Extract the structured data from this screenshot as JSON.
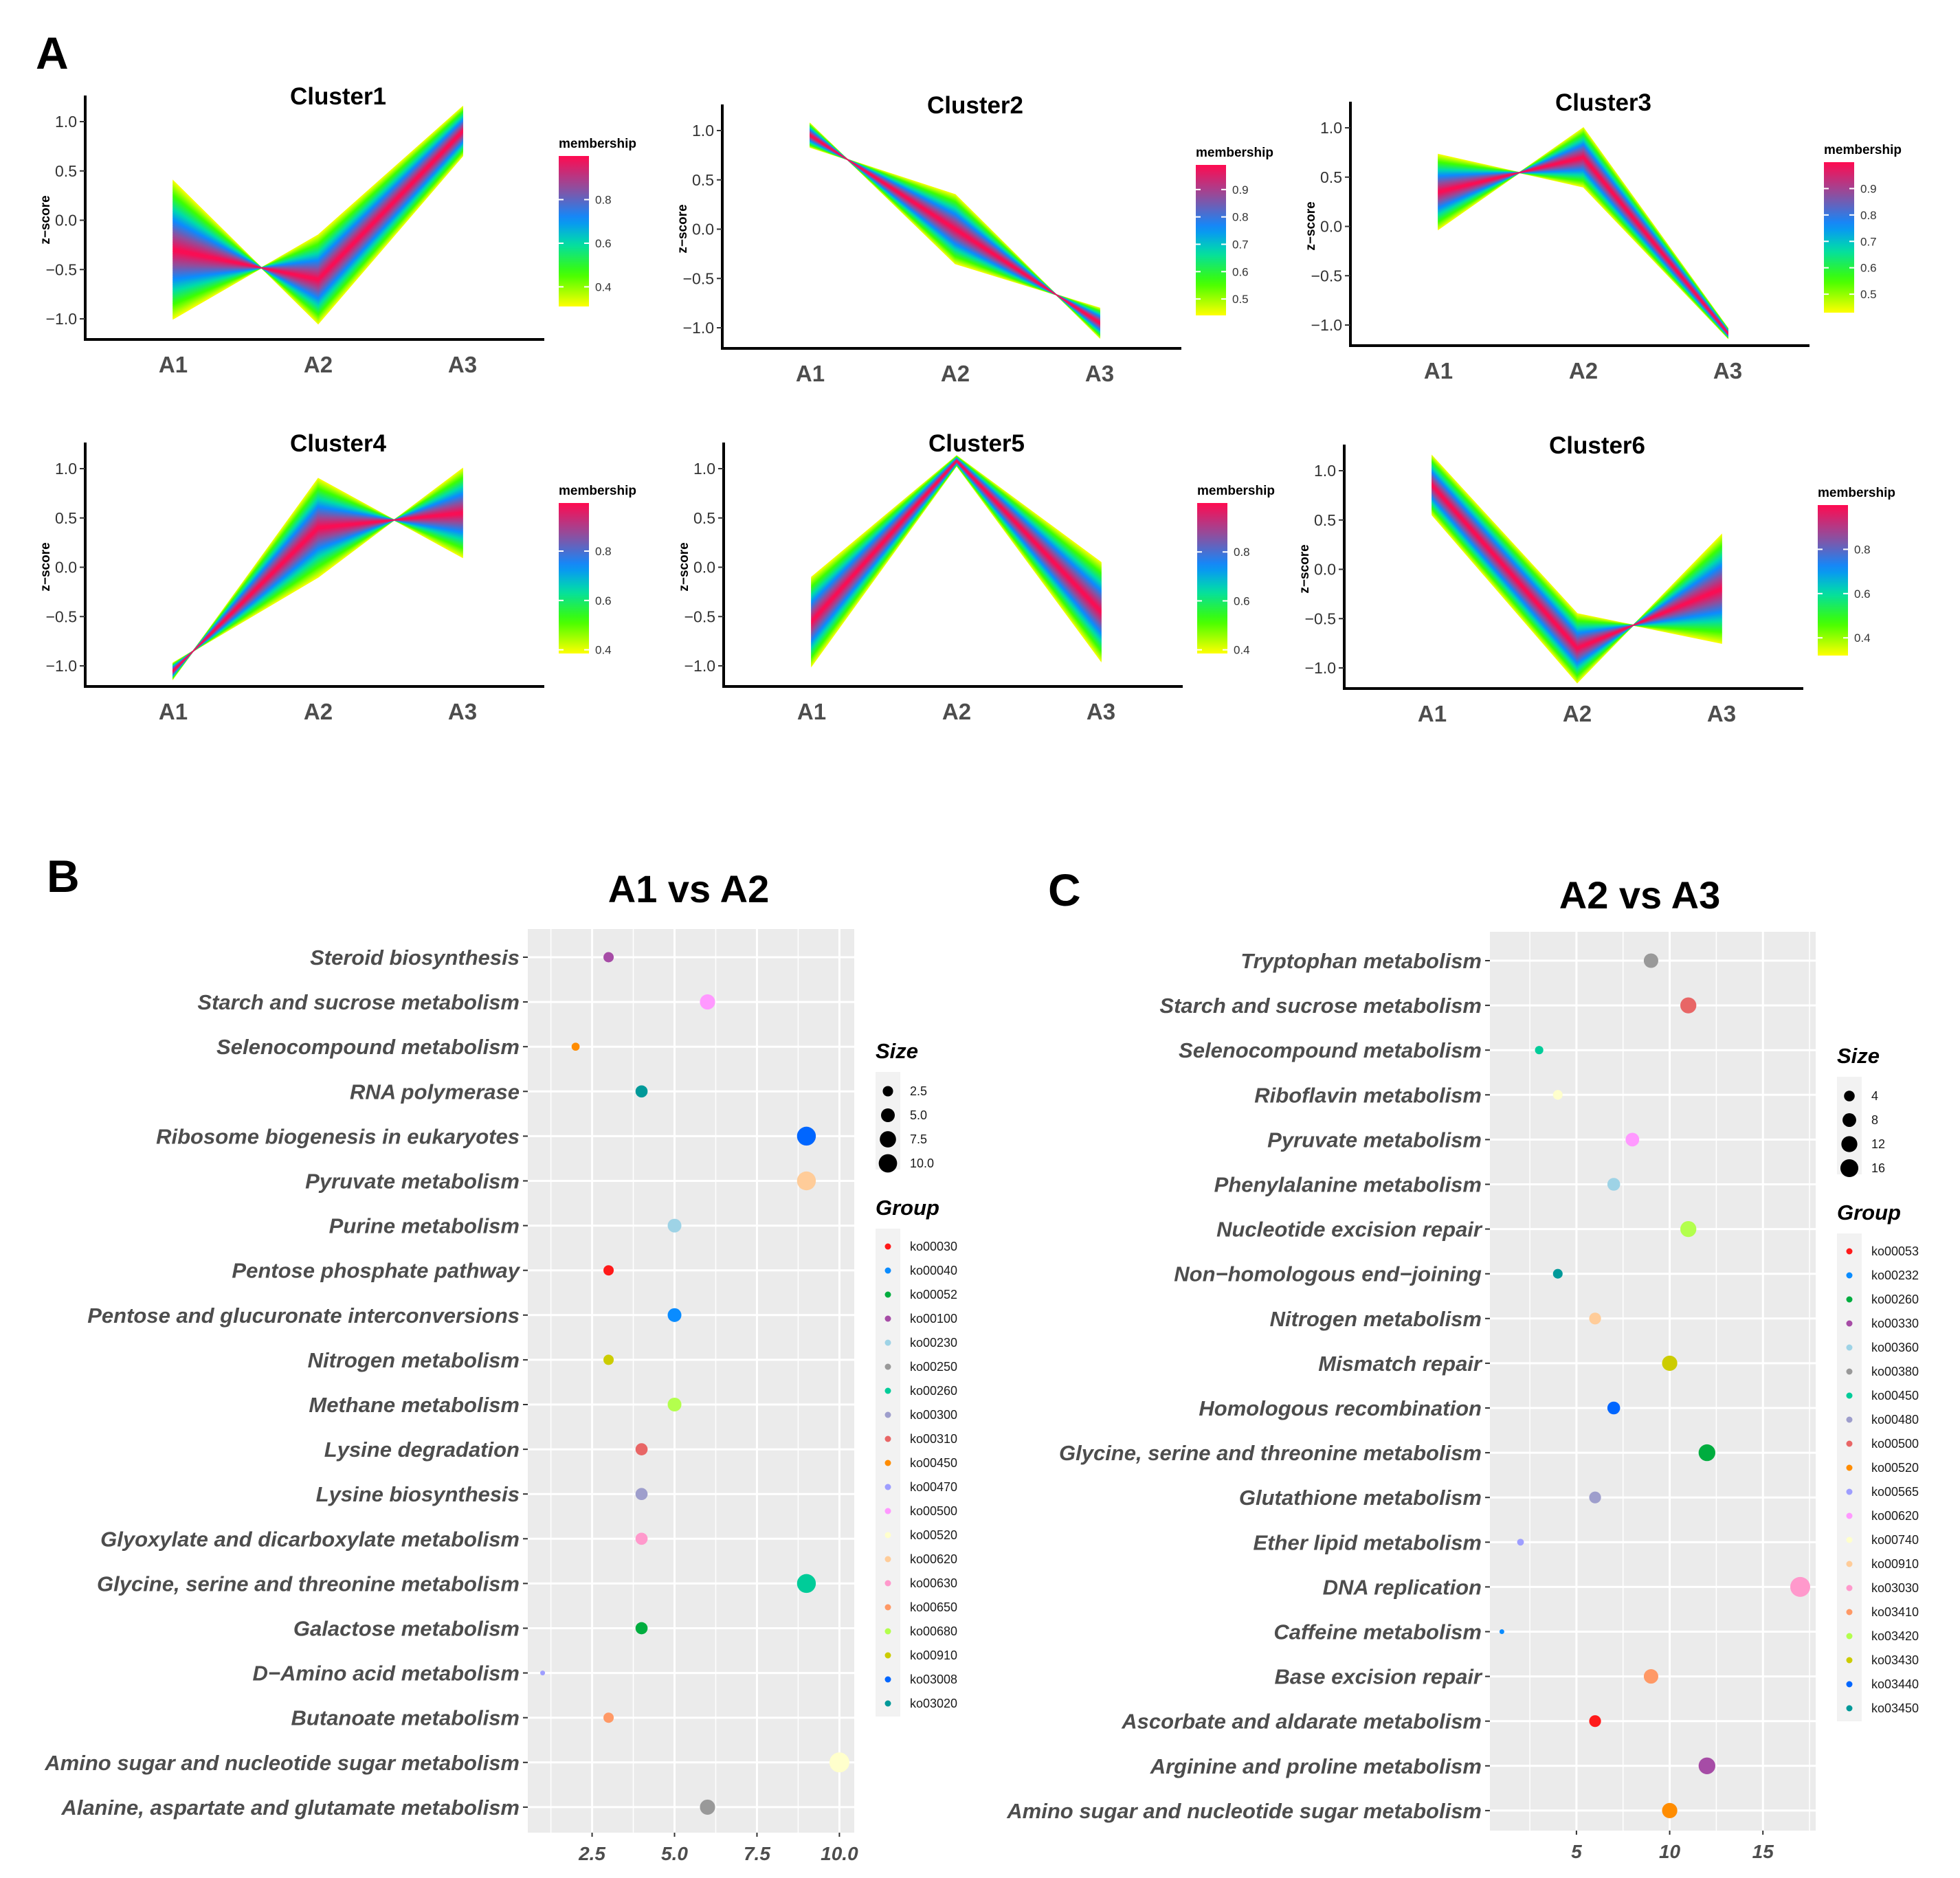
{
  "panel_labels": {
    "a": "A",
    "b": "B",
    "c": "C"
  },
  "chart_data": [
    {
      "type": "line",
      "title": "Cluster1",
      "ylabel": "z−score",
      "categories": [
        "A1",
        "A2",
        "A3"
      ],
      "yticks": [
        {
          "v": 1.0,
          "label": "1.0"
        },
        {
          "v": 0.5,
          "label": "0.5"
        },
        {
          "v": 0.0,
          "label": "0.0"
        },
        {
          "v": -0.5,
          "label": "−0.5"
        },
        {
          "v": -1.0,
          "label": "−1.0"
        }
      ],
      "legend_title": "membership",
      "legend_ticks": [
        0.4,
        0.6,
        0.8
      ],
      "membership_range": [
        0.31,
        1.0
      ],
      "core_profile": [
        -0.3,
        -0.6,
        0.9
      ],
      "spread": [
        0.7,
        -0.45,
        -0.25
      ]
    },
    {
      "type": "line",
      "title": "Cluster2",
      "ylabel": "z−score",
      "categories": [
        "A1",
        "A2",
        "A3"
      ],
      "yticks": [
        {
          "v": 1.0,
          "label": "1.0"
        },
        {
          "v": 0.5,
          "label": "0.5"
        },
        {
          "v": 0.0,
          "label": "0.0"
        },
        {
          "v": -0.5,
          "label": "−0.5"
        },
        {
          "v": -1.0,
          "label": "−1.0"
        }
      ],
      "legend_title": "membership",
      "legend_ticks": [
        0.5,
        0.6,
        0.7,
        0.8,
        0.9
      ],
      "membership_range": [
        0.44,
        0.99
      ],
      "core_profile": [
        0.95,
        0.0,
        -0.95
      ],
      "spread": [
        -0.12,
        0.35,
        -0.15
      ]
    },
    {
      "type": "line",
      "title": "Cluster3",
      "ylabel": "z−score",
      "categories": [
        "A1",
        "A2",
        "A3"
      ],
      "yticks": [
        {
          "v": 1.0,
          "label": "1.0"
        },
        {
          "v": 0.5,
          "label": "0.5"
        },
        {
          "v": 0.0,
          "label": "0.0"
        },
        {
          "v": -0.5,
          "label": "−0.5"
        },
        {
          "v": -1.0,
          "label": "−1.0"
        }
      ],
      "legend_title": "membership",
      "legend_ticks": [
        0.5,
        0.6,
        0.7,
        0.8,
        0.9
      ],
      "membership_range": [
        0.43,
        1.0
      ],
      "core_profile": [
        0.35,
        0.7,
        -1.08
      ],
      "spread": [
        -0.38,
        0.3,
        0.05
      ]
    },
    {
      "type": "line",
      "title": "Cluster4",
      "ylabel": "z−score",
      "categories": [
        "A1",
        "A2",
        "A3"
      ],
      "yticks": [
        {
          "v": 1.0,
          "label": "1.0"
        },
        {
          "v": 0.5,
          "label": "0.5"
        },
        {
          "v": 0.0,
          "label": "0.0"
        },
        {
          "v": -0.5,
          "label": "−0.5"
        },
        {
          "v": -1.0,
          "label": "−1.0"
        }
      ],
      "legend_title": "membership",
      "legend_ticks": [
        0.4,
        0.6,
        0.8
      ],
      "membership_range": [
        0.385,
        0.995
      ],
      "core_profile": [
        -1.05,
        0.4,
        0.55
      ],
      "spread": [
        0.08,
        -0.5,
        0.45
      ]
    },
    {
      "type": "line",
      "title": "Cluster5",
      "ylabel": "z−score",
      "categories": [
        "A1",
        "A2",
        "A3"
      ],
      "yticks": [
        {
          "v": 1.0,
          "label": "1.0"
        },
        {
          "v": 0.5,
          "label": "0.5"
        },
        {
          "v": 0.0,
          "label": "0.0"
        },
        {
          "v": -0.5,
          "label": "−0.5"
        },
        {
          "v": -1.0,
          "label": "−1.0"
        }
      ],
      "legend_title": "membership",
      "legend_ticks": [
        0.4,
        0.6,
        0.8
      ],
      "membership_range": [
        0.385,
        1.0
      ],
      "core_profile": [
        -0.55,
        1.08,
        -0.45
      ],
      "spread": [
        0.45,
        0.05,
        0.5
      ]
    },
    {
      "type": "line",
      "title": "Cluster6",
      "ylabel": "z−score",
      "categories": [
        "A1",
        "A2",
        "A3"
      ],
      "yticks": [
        {
          "v": 1.0,
          "label": "1.0"
        },
        {
          "v": 0.5,
          "label": "0.5"
        },
        {
          "v": 0.0,
          "label": "0.0"
        },
        {
          "v": -0.5,
          "label": "−0.5"
        },
        {
          "v": -1.0,
          "label": "−1.0"
        }
      ],
      "legend_title": "membership",
      "legend_ticks": [
        0.4,
        0.6,
        0.8
      ],
      "membership_range": [
        0.32,
        1.0
      ],
      "core_profile": [
        0.85,
        -0.8,
        -0.2
      ],
      "spread": [
        -0.3,
        -0.35,
        0.55
      ]
    },
    {
      "type": "scatter",
      "title": "A1 vs A2",
      "xlim": [
        0.55,
        10.45
      ],
      "xticks": [
        {
          "v": 2.5,
          "label": "2.5"
        },
        {
          "v": 5.0,
          "label": "5.0"
        },
        {
          "v": 7.5,
          "label": "7.5"
        },
        {
          "v": 10.0,
          "label": "10.0"
        }
      ],
      "minor_ticks": [
        1.25,
        3.75,
        6.25,
        8.75
      ],
      "categories": [
        "Steroid biosynthesis",
        "Starch and sucrose metabolism",
        "Selenocompound metabolism",
        "RNA polymerase",
        "Ribosome biogenesis in eukaryotes",
        "Pyruvate metabolism",
        "Purine metabolism",
        "Pentose phosphate pathway",
        "Pentose and glucuronate interconversions",
        "Nitrogen metabolism",
        "Methane metabolism",
        "Lysine degradation",
        "Lysine biosynthesis",
        "Glyoxylate and dicarboxylate metabolism",
        "Glycine, serine and threonine metabolism",
        "Galactose metabolism",
        "D−Amino acid metabolism",
        "Butanoate metabolism",
        "Amino sugar and nucleotide sugar metabolism",
        "Alanine, aspartate and glutamate metabolism"
      ],
      "values": [
        3,
        6,
        2,
        4,
        9,
        9,
        5,
        3,
        5,
        3,
        5,
        4,
        4,
        4,
        9,
        4,
        1,
        3,
        10,
        6
      ],
      "groups": [
        "ko00100",
        "ko00500",
        "ko00450",
        "ko03020",
        "ko03008",
        "ko00620",
        "ko00230",
        "ko00030",
        "ko00040",
        "ko00910",
        "ko00680",
        "ko00310",
        "ko00300",
        "ko00630",
        "ko00260",
        "ko00052",
        "ko00470",
        "ko00650",
        "ko00520",
        "ko00250"
      ],
      "size_legend": {
        "title": "Size",
        "values": [
          2.5,
          5.0,
          7.5,
          10.0
        ],
        "labels": [
          "2.5",
          "5.0",
          "7.5",
          "10.0"
        ]
      },
      "group_legend": {
        "title": "Group",
        "items": [
          {
            "label": "ko00030",
            "color": "#FF1A1A"
          },
          {
            "label": "ko00040",
            "color": "#0A8CFF"
          },
          {
            "label": "ko00052",
            "color": "#00AD3F"
          },
          {
            "label": "ko00100",
            "color": "#A64CA6"
          },
          {
            "label": "ko00230",
            "color": "#9ED3E6"
          },
          {
            "label": "ko00250",
            "color": "#999999"
          },
          {
            "label": "ko00260",
            "color": "#00CC99"
          },
          {
            "label": "ko00300",
            "color": "#9E9ECC"
          },
          {
            "label": "ko00310",
            "color": "#E86666"
          },
          {
            "label": "ko00450",
            "color": "#FF8C00"
          },
          {
            "label": "ko00470",
            "color": "#9E9EFF"
          },
          {
            "label": "ko00500",
            "color": "#FF99FF"
          },
          {
            "label": "ko00520",
            "color": "#FFFFCC"
          },
          {
            "label": "ko00620",
            "color": "#FFCC99"
          },
          {
            "label": "ko00630",
            "color": "#FF99CC"
          },
          {
            "label": "ko00650",
            "color": "#FF9966"
          },
          {
            "label": "ko00680",
            "color": "#B3FF4D"
          },
          {
            "label": "ko00910",
            "color": "#CCCC00"
          },
          {
            "label": "ko03008",
            "color": "#0066FF"
          },
          {
            "label": "ko03020",
            "color": "#009999"
          }
        ]
      }
    },
    {
      "type": "scatter",
      "title": "A2 vs A3",
      "xlim": [
        0.36,
        17.83
      ],
      "xticks": [
        {
          "v": 5,
          "label": "5"
        },
        {
          "v": 10,
          "label": "10"
        },
        {
          "v": 15,
          "label": "15"
        }
      ],
      "minor_ticks": [
        2.5,
        7.5,
        12.5,
        17.5
      ],
      "categories": [
        "Tryptophan metabolism",
        "Starch and sucrose metabolism",
        "Selenocompound metabolism",
        "Riboflavin metabolism",
        "Pyruvate metabolism",
        "Phenylalanine metabolism",
        "Nucleotide excision repair",
        "Non−homologous end−joining",
        "Nitrogen metabolism",
        "Mismatch repair",
        "Homologous recombination",
        "Glycine, serine and threonine metabolism",
        "Glutathione metabolism",
        "Ether lipid metabolism",
        "DNA replication",
        "Caffeine metabolism",
        "Base excision repair",
        "Ascorbate and aldarate metabolism",
        "Arginine and proline metabolism",
        "Amino sugar and nucleotide sugar metabolism"
      ],
      "values": [
        9,
        11,
        3,
        4,
        8,
        7,
        11,
        4,
        6,
        10,
        7,
        12,
        6,
        2,
        17,
        1,
        9,
        6,
        12,
        10
      ],
      "groups": [
        "ko00380",
        "ko00500",
        "ko00450",
        "ko00740",
        "ko00620",
        "ko00360",
        "ko03420",
        "ko03450",
        "ko00910",
        "ko03430",
        "ko03440",
        "ko00260",
        "ko00480",
        "ko00565",
        "ko03030",
        "ko00232",
        "ko03410",
        "ko00053",
        "ko00330",
        "ko00520"
      ],
      "size_legend": {
        "title": "Size",
        "values": [
          4,
          8,
          12,
          16
        ],
        "labels": [
          "4",
          "8",
          "12",
          "16"
        ]
      },
      "group_legend": {
        "title": "Group",
        "items": [
          {
            "label": "ko00053",
            "color": "#FF1A1A"
          },
          {
            "label": "ko00232",
            "color": "#0A8CFF"
          },
          {
            "label": "ko00260",
            "color": "#00AD3F"
          },
          {
            "label": "ko00330",
            "color": "#A64CA6"
          },
          {
            "label": "ko00360",
            "color": "#9ED3E6"
          },
          {
            "label": "ko00380",
            "color": "#999999"
          },
          {
            "label": "ko00450",
            "color": "#00CC99"
          },
          {
            "label": "ko00480",
            "color": "#9E9ECC"
          },
          {
            "label": "ko00500",
            "color": "#E86666"
          },
          {
            "label": "ko00520",
            "color": "#FF8C00"
          },
          {
            "label": "ko00565",
            "color": "#9E9EFF"
          },
          {
            "label": "ko00620",
            "color": "#FF99FF"
          },
          {
            "label": "ko00740",
            "color": "#FFFFCC"
          },
          {
            "label": "ko00910",
            "color": "#FFCC99"
          },
          {
            "label": "ko03030",
            "color": "#FF99CC"
          },
          {
            "label": "ko03410",
            "color": "#FF9966"
          },
          {
            "label": "ko03420",
            "color": "#B3FF4D"
          },
          {
            "label": "ko03430",
            "color": "#CCCC00"
          },
          {
            "label": "ko03440",
            "color": "#0066FF"
          },
          {
            "label": "ko03450",
            "color": "#009999"
          }
        ]
      }
    }
  ]
}
